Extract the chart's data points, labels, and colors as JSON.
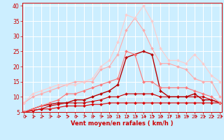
{
  "x": [
    0,
    1,
    2,
    3,
    4,
    5,
    6,
    7,
    8,
    9,
    10,
    11,
    12,
    13,
    14,
    15,
    16,
    17,
    18,
    19,
    20,
    21,
    22,
    23
  ],
  "series": [
    {
      "color": "#dd0000",
      "lw": 0.8,
      "ms": 2.0,
      "values": [
        5,
        5.5,
        6,
        6,
        6.5,
        7,
        7,
        7,
        7.5,
        7.5,
        8,
        8,
        8,
        8,
        8,
        8,
        8,
        8,
        8,
        8,
        8,
        8,
        8,
        8
      ]
    },
    {
      "color": "#cc0000",
      "lw": 0.8,
      "ms": 2.0,
      "values": [
        5,
        5.5,
        6,
        7,
        7.5,
        8,
        8,
        8,
        8.5,
        9,
        10,
        10,
        11,
        11,
        11,
        11,
        10,
        10,
        10,
        10,
        10,
        10,
        9,
        8
      ]
    },
    {
      "color": "#bb0000",
      "lw": 1.0,
      "ms": 2.0,
      "values": [
        5,
        6,
        7,
        7.5,
        8,
        8,
        9,
        9,
        10,
        11,
        12,
        14,
        23,
        24,
        25,
        24,
        12,
        10,
        10,
        10,
        11,
        9,
        9,
        8
      ]
    },
    {
      "color": "#ff7777",
      "lw": 0.8,
      "ms": 2.0,
      "values": [
        5,
        6,
        7,
        8,
        9,
        11,
        11,
        12,
        13,
        14,
        15,
        16,
        25,
        24,
        15,
        15,
        13,
        13,
        13,
        13,
        12,
        11,
        10,
        8
      ]
    },
    {
      "color": "#ffaaaa",
      "lw": 0.8,
      "ms": 2.0,
      "values": [
        8,
        10,
        11,
        12,
        13,
        14,
        15,
        15,
        15,
        19,
        20,
        24,
        32,
        36,
        32,
        26,
        21,
        21,
        20,
        19,
        16,
        15,
        15,
        10
      ]
    },
    {
      "color": "#ffcccc",
      "lw": 0.8,
      "ms": 2.0,
      "values": [
        8,
        11,
        12,
        13,
        14,
        14,
        14,
        15,
        16,
        20,
        22,
        28,
        37,
        36,
        40,
        35,
        26,
        22,
        22,
        21,
        24,
        21,
        17,
        15
      ]
    }
  ],
  "ylim": [
    5,
    41
  ],
  "xlim": [
    -0.2,
    23.2
  ],
  "yticks": [
    5,
    10,
    15,
    20,
    25,
    30,
    35,
    40
  ],
  "xticks": [
    0,
    1,
    2,
    3,
    4,
    5,
    6,
    7,
    8,
    9,
    10,
    11,
    12,
    13,
    14,
    15,
    16,
    17,
    18,
    19,
    20,
    21,
    22,
    23
  ],
  "xlabel": "Vent moyen/en rafales ( km/h )",
  "bg_color": "#cceeff",
  "grid_color": "#ffffff",
  "axis_color": "#cc0000",
  "label_color": "#cc0000",
  "tick_color": "#cc0000",
  "tick_fontsize": 5.0,
  "xlabel_fontsize": 6.0
}
